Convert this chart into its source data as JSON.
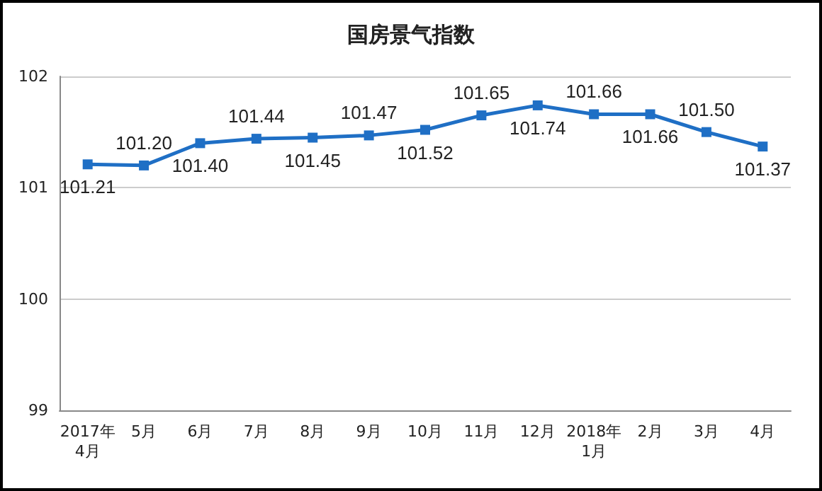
{
  "chart_data": {
    "type": "line",
    "title": "国房景气指数",
    "categories": [
      "2017年\n4月",
      "5月",
      "6月",
      "7月",
      "8月",
      "9月",
      "10月",
      "11月",
      "12月",
      "2018年\n1月",
      "2月",
      "3月",
      "4月"
    ],
    "series": [
      {
        "color": "#1f6fc5",
        "values": [
          101.21,
          101.2,
          101.4,
          101.44,
          101.45,
          101.47,
          101.52,
          101.65,
          101.74,
          101.66,
          101.66,
          101.5,
          101.37
        ],
        "value_labels": [
          "101.21",
          "101.20",
          "101.40",
          "101.44",
          "101.45",
          "101.47",
          "101.52",
          "101.65",
          "101.74",
          "101.66",
          "101.66",
          "101.50",
          "101.37"
        ]
      }
    ],
    "ylim": [
      99,
      102
    ],
    "yticks": [
      99,
      100,
      101,
      102
    ],
    "grid": "y",
    "marker": "square",
    "line_style": "solid"
  }
}
